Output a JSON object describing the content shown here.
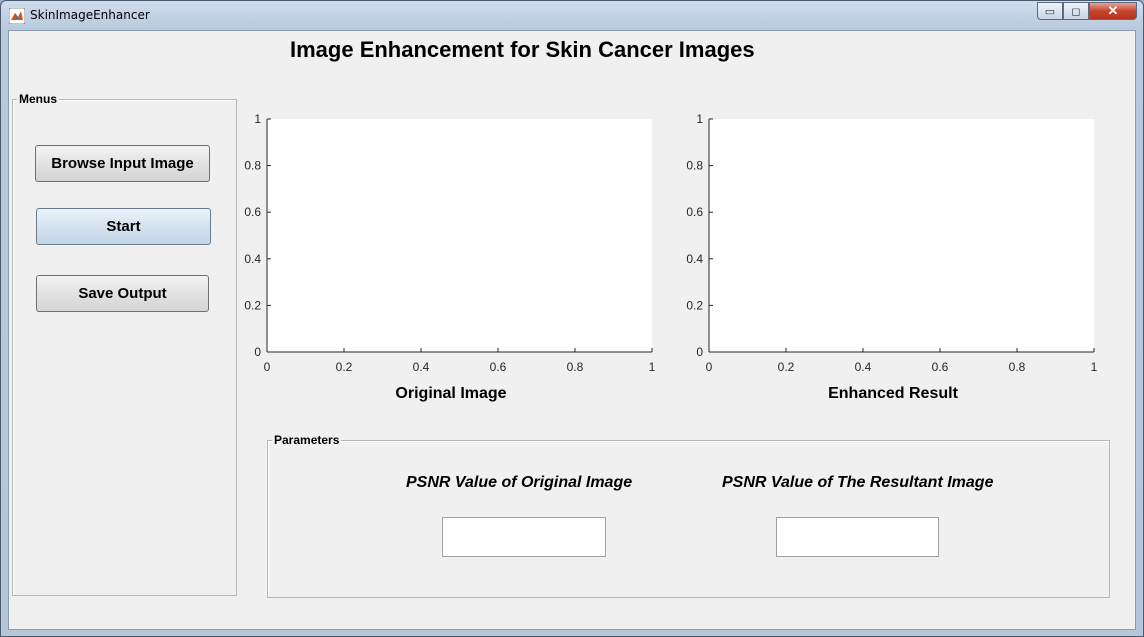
{
  "window": {
    "title": "SkinImageEnhancer",
    "minimize": "▭",
    "maximize": "◻",
    "close": "✕"
  },
  "app_title": "Image Enhancement for Skin Cancer Images",
  "menus": {
    "label": "Menus",
    "browse": "Browse Input Image",
    "start": "Start",
    "save": "Save Output"
  },
  "axes": [
    {
      "caption": "Original Image",
      "xticks": [
        "0",
        "0.2",
        "0.4",
        "0.6",
        "0.8",
        "1"
      ],
      "yticks": [
        "0",
        "0.2",
        "0.4",
        "0.6",
        "0.8",
        "1"
      ]
    },
    {
      "caption": "Enhanced Result",
      "xticks": [
        "0",
        "0.2",
        "0.4",
        "0.6",
        "0.8",
        "1"
      ],
      "yticks": [
        "0",
        "0.2",
        "0.4",
        "0.6",
        "0.8",
        "1"
      ]
    }
  ],
  "parameters": {
    "label": "Parameters",
    "psnr_original_label": "PSNR Value of Original Image",
    "psnr_result_label": "PSNR Value of The Resultant Image",
    "psnr_original_value": "",
    "psnr_result_value": ""
  }
}
